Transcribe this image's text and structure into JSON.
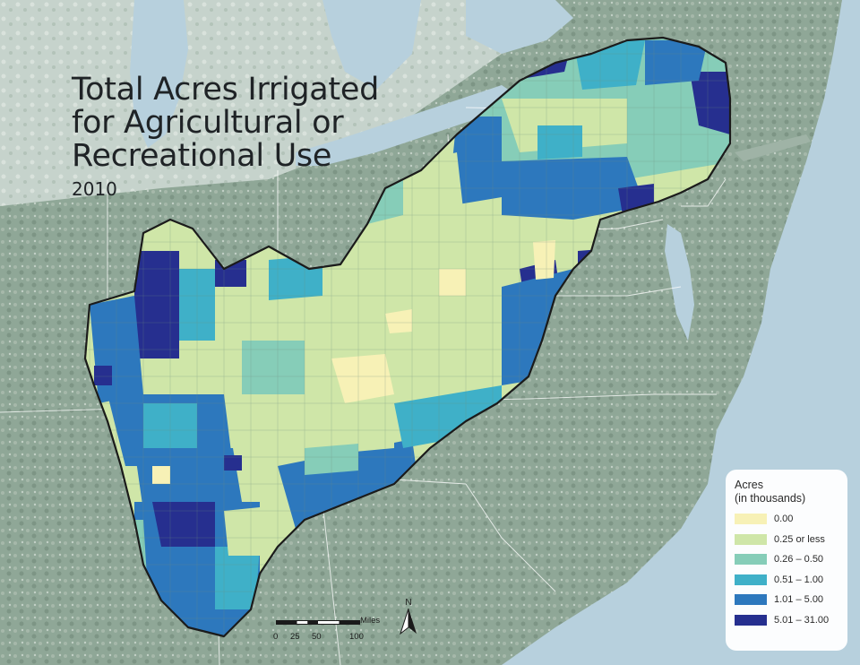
{
  "title": {
    "line1": "Total Acres Irrigated",
    "line2": "for Agricultural or",
    "line3": "Recreational Use",
    "year": "2010"
  },
  "legend": {
    "title_line1": "Acres",
    "title_line2": "(in thousands)",
    "items": [
      {
        "label": "0.00",
        "color": "#f7f1b6"
      },
      {
        "label": "0.25 or less",
        "color": "#cfe6a8"
      },
      {
        "label": "0.26 – 0.50",
        "color": "#86cdb8"
      },
      {
        "label": "0.51 – 1.00",
        "color": "#3fb0c8"
      },
      {
        "label": "1.01 – 5.00",
        "color": "#2d78bd"
      },
      {
        "label": "5.01 – 31.00",
        "color": "#262f8f"
      }
    ]
  },
  "scale_bar": {
    "unit": "Miles",
    "ticks": [
      "0",
      "25",
      "50",
      "100"
    ]
  },
  "north_arrow": {
    "letter": "N"
  },
  "colors": {
    "water": "#b7d0dd",
    "land": "#8ea596",
    "land_light": "#c9d6cf",
    "boundary": "#1b1b1b"
  }
}
